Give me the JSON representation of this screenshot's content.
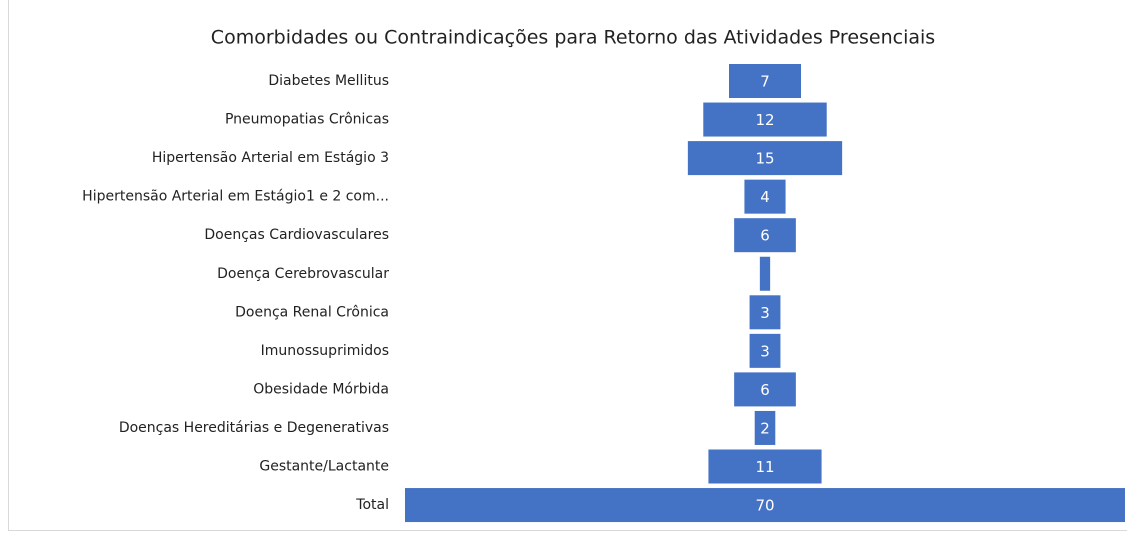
{
  "chart_data": {
    "type": "funnel",
    "title": "Comorbidades ou Contraindicações para Retorno das Atividades Presenciais",
    "categories": [
      "Diabetes Mellitus",
      "Pneumopatias Crônicas",
      "Hipertensão Arterial em Estágio 3",
      "Hipertensão Arterial em Estágio1 e 2 com...",
      "Doenças Cardiovasculares",
      "Doença Cerebrovascular",
      "Doença Renal Crônica",
      "Imunossuprimidos",
      "Obesidade Mórbida",
      "Doenças Hereditárias e Degenerativas",
      "Gestante/Lactante",
      "Total"
    ],
    "values": [
      7,
      12,
      15,
      4,
      6,
      1,
      3,
      3,
      6,
      2,
      11,
      70
    ],
    "color": "#4472c4"
  }
}
